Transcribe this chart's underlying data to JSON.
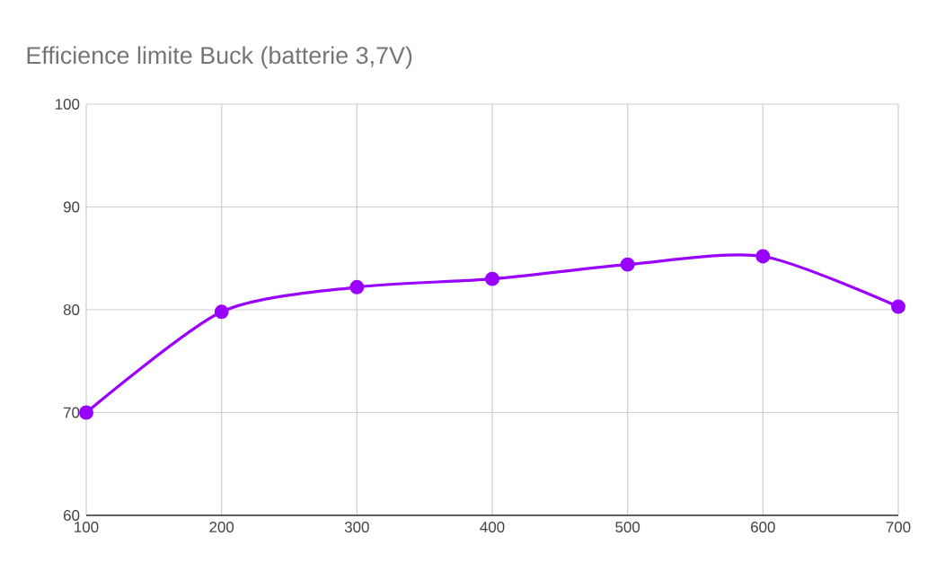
{
  "chart_data": {
    "type": "line",
    "title": "Efficience limite Buck (batterie 3,7V)",
    "x": [
      100,
      200,
      300,
      400,
      500,
      600,
      700
    ],
    "series": [
      {
        "color": "#9900ff",
        "values": [
          70,
          79.8,
          82.2,
          83,
          84.4,
          85.2,
          80.3
        ]
      }
    ],
    "xlim": [
      100,
      700
    ],
    "xticks": [
      100,
      200,
      300,
      400,
      500,
      600,
      700
    ],
    "ylim": [
      60,
      100
    ],
    "yticks": [
      60,
      70,
      80,
      90,
      100
    ],
    "grid": true,
    "marker": "circle",
    "line_style": "solid"
  }
}
